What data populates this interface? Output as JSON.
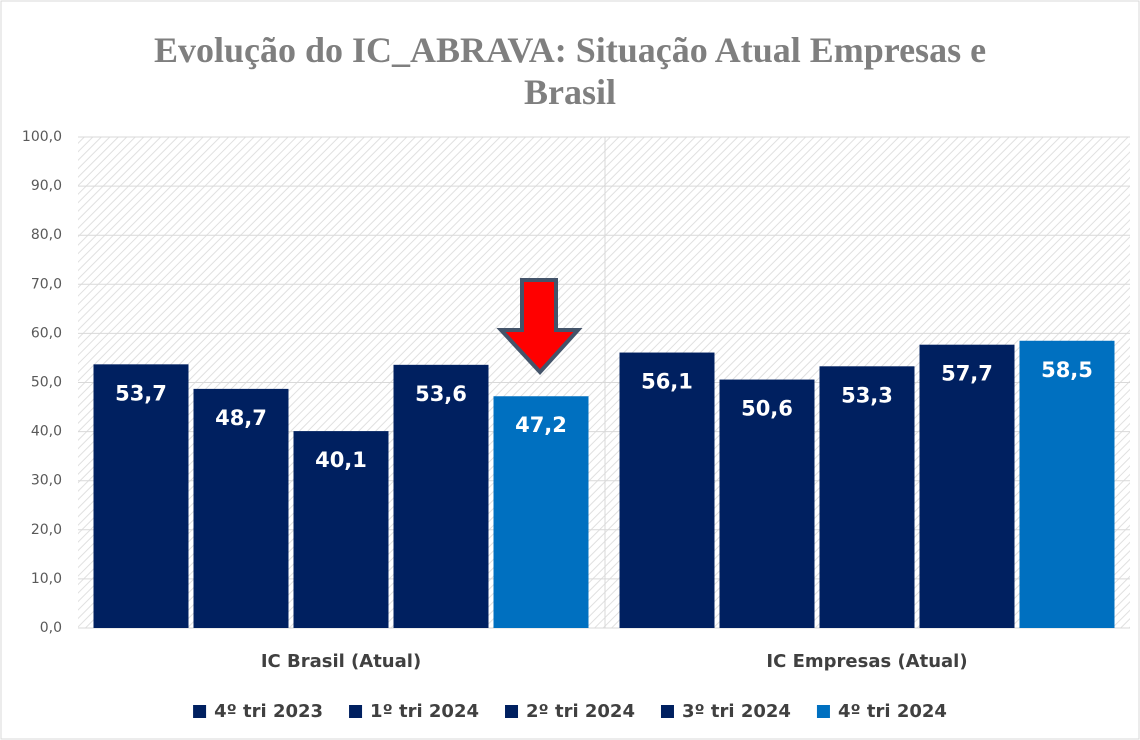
{
  "chart_data": {
    "type": "bar",
    "title": "Evolução do IC_ABRAVA: Situação Atual Empresas e Brasil",
    "categories": [
      "IC Brasil (Atual)",
      "IC Empresas (Atual)"
    ],
    "series": [
      {
        "name": "4º tri 2023",
        "color": "#002060",
        "values": [
          53.7,
          56.1
        ],
        "value_labels": [
          "53,7",
          "56,1"
        ]
      },
      {
        "name": "1º tri 2024",
        "color": "#002060",
        "values": [
          48.7,
          50.6
        ],
        "value_labels": [
          "48,7",
          "50,6"
        ]
      },
      {
        "name": "2º tri 2024",
        "color": "#002060",
        "values": [
          40.1,
          53.3
        ],
        "value_labels": [
          "40,1",
          "53,3"
        ]
      },
      {
        "name": "3º tri 2024",
        "color": "#002060",
        "values": [
          53.6,
          57.7
        ],
        "value_labels": [
          "53,6",
          "57,7"
        ]
      },
      {
        "name": "4º tri 2024",
        "color": "#0070c0",
        "values": [
          47.2,
          58.5
        ],
        "value_labels": [
          "47,2",
          "58,5"
        ]
      }
    ],
    "ylim": [
      0,
      100
    ],
    "yticks": [
      {
        "value": 0,
        "label": "0,0"
      },
      {
        "value": 10,
        "label": "10,0"
      },
      {
        "value": 20,
        "label": "20,0"
      },
      {
        "value": 30,
        "label": "30,0"
      },
      {
        "value": 40,
        "label": "40,0"
      },
      {
        "value": 50,
        "label": "50,0"
      },
      {
        "value": 60,
        "label": "60,0"
      },
      {
        "value": 70,
        "label": "70,0"
      },
      {
        "value": 80,
        "label": "80,0"
      },
      {
        "value": 90,
        "label": "90,0"
      },
      {
        "value": 100,
        "label": "100,0"
      }
    ],
    "grid": true,
    "legend": "bottom"
  }
}
